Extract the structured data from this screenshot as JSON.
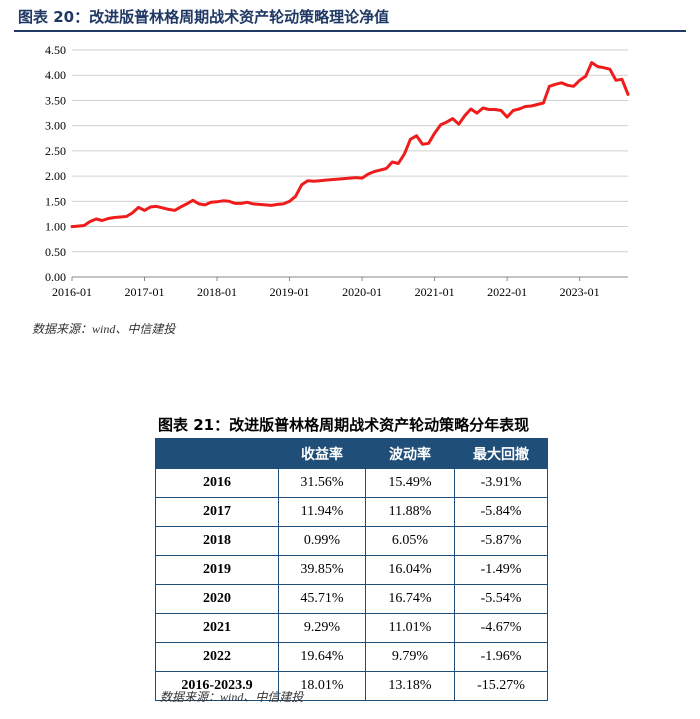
{
  "figure20": {
    "title": "图表 20：改进版普林格周期战术资产轮动策略理论净值",
    "source": "数据来源：wind、中信建投"
  },
  "chart_data": {
    "type": "line",
    "title": "图表 20：改进版普林格周期战术资产轮动策略理论净值",
    "xlabel": "",
    "ylabel": "",
    "x_ticks": [
      "2016-01",
      "2017-01",
      "2018-01",
      "2019-01",
      "2020-01",
      "2021-01",
      "2022-01",
      "2023-01"
    ],
    "y_ticks": [
      "0.00",
      "0.50",
      "1.00",
      "1.50",
      "2.00",
      "2.50",
      "3.00",
      "3.50",
      "4.00",
      "4.50"
    ],
    "ylim": [
      0,
      4.5
    ],
    "xlim": [
      "2016-01",
      "2023-09"
    ],
    "grid": "horizontal",
    "color": "#ee1c1c",
    "series": [
      {
        "points": [
          [
            "2016-01",
            1.0
          ],
          [
            "2016-02",
            1.01
          ],
          [
            "2016-03",
            1.02
          ],
          [
            "2016-04",
            1.1
          ],
          [
            "2016-05",
            1.15
          ],
          [
            "2016-06",
            1.12
          ],
          [
            "2016-07",
            1.16
          ],
          [
            "2016-08",
            1.18
          ],
          [
            "2016-09",
            1.19
          ],
          [
            "2016-10",
            1.2
          ],
          [
            "2016-11",
            1.27
          ],
          [
            "2016-12",
            1.38
          ],
          [
            "2017-01",
            1.32
          ],
          [
            "2017-02",
            1.39
          ],
          [
            "2017-03",
            1.4
          ],
          [
            "2017-04",
            1.37
          ],
          [
            "2017-05",
            1.34
          ],
          [
            "2017-06",
            1.32
          ],
          [
            "2017-07",
            1.39
          ],
          [
            "2017-08",
            1.45
          ],
          [
            "2017-09",
            1.52
          ],
          [
            "2017-10",
            1.45
          ],
          [
            "2017-11",
            1.43
          ],
          [
            "2017-12",
            1.48
          ],
          [
            "2018-01",
            1.49
          ],
          [
            "2018-02",
            1.51
          ],
          [
            "2018-03",
            1.5
          ],
          [
            "2018-04",
            1.46
          ],
          [
            "2018-05",
            1.46
          ],
          [
            "2018-06",
            1.48
          ],
          [
            "2018-07",
            1.45
          ],
          [
            "2018-08",
            1.44
          ],
          [
            "2018-09",
            1.43
          ],
          [
            "2018-10",
            1.42
          ],
          [
            "2018-11",
            1.44
          ],
          [
            "2018-12",
            1.45
          ],
          [
            "2019-01",
            1.5
          ],
          [
            "2019-02",
            1.6
          ],
          [
            "2019-03",
            1.83
          ],
          [
            "2019-04",
            1.91
          ],
          [
            "2019-05",
            1.9
          ],
          [
            "2019-06",
            1.91
          ],
          [
            "2019-07",
            1.92
          ],
          [
            "2019-08",
            1.93
          ],
          [
            "2019-09",
            1.94
          ],
          [
            "2019-10",
            1.95
          ],
          [
            "2019-11",
            1.96
          ],
          [
            "2019-12",
            1.97
          ],
          [
            "2020-01",
            1.96
          ],
          [
            "2020-02",
            2.04
          ],
          [
            "2020-03",
            2.09
          ],
          [
            "2020-04",
            2.12
          ],
          [
            "2020-05",
            2.15
          ],
          [
            "2020-06",
            2.28
          ],
          [
            "2020-07",
            2.25
          ],
          [
            "2020-08",
            2.44
          ],
          [
            "2020-09",
            2.73
          ],
          [
            "2020-10",
            2.8
          ],
          [
            "2020-11",
            2.63
          ],
          [
            "2020-12",
            2.65
          ],
          [
            "2021-01",
            2.85
          ],
          [
            "2021-02",
            3.02
          ],
          [
            "2021-03",
            3.07
          ],
          [
            "2021-04",
            3.14
          ],
          [
            "2021-05",
            3.03
          ],
          [
            "2021-06",
            3.2
          ],
          [
            "2021-07",
            3.33
          ],
          [
            "2021-08",
            3.25
          ],
          [
            "2021-09",
            3.35
          ],
          [
            "2021-10",
            3.32
          ],
          [
            "2021-11",
            3.32
          ],
          [
            "2021-12",
            3.3
          ],
          [
            "2022-01",
            3.17
          ],
          [
            "2022-02",
            3.3
          ],
          [
            "2022-03",
            3.33
          ],
          [
            "2022-04",
            3.38
          ],
          [
            "2022-05",
            3.39
          ],
          [
            "2022-06",
            3.42
          ],
          [
            "2022-07",
            3.45
          ],
          [
            "2022-08",
            3.78
          ],
          [
            "2022-09",
            3.82
          ],
          [
            "2022-10",
            3.85
          ],
          [
            "2022-11",
            3.8
          ],
          [
            "2022-12",
            3.78
          ],
          [
            "2023-01",
            3.9
          ],
          [
            "2023-02",
            3.98
          ],
          [
            "2023-03",
            4.25
          ],
          [
            "2023-04",
            4.17
          ],
          [
            "2023-05",
            4.15
          ],
          [
            "2023-06",
            4.12
          ],
          [
            "2023-07",
            3.9
          ],
          [
            "2023-08",
            3.92
          ],
          [
            "2023-09",
            3.62
          ]
        ]
      }
    ]
  },
  "table21": {
    "title": "图表 21：改进版普林格周期战术资产轮动策略分年表现",
    "headers": [
      "",
      "收益率",
      "波动率",
      "最大回撤"
    ],
    "rows": [
      [
        "2016",
        "31.56%",
        "15.49%",
        "-3.91%"
      ],
      [
        "2017",
        "11.94%",
        "11.88%",
        "-5.84%"
      ],
      [
        "2018",
        "0.99%",
        "6.05%",
        "-5.87%"
      ],
      [
        "2019",
        "39.85%",
        "16.04%",
        "-1.49%"
      ],
      [
        "2020",
        "45.71%",
        "16.74%",
        "-5.54%"
      ],
      [
        "2021",
        "9.29%",
        "11.01%",
        "-4.67%"
      ],
      [
        "2022",
        "19.64%",
        "9.79%",
        "-1.96%"
      ],
      [
        "2016-2023.9",
        "18.01%",
        "13.18%",
        "-15.27%"
      ]
    ],
    "source": "数据来源：wind、中信建投"
  }
}
